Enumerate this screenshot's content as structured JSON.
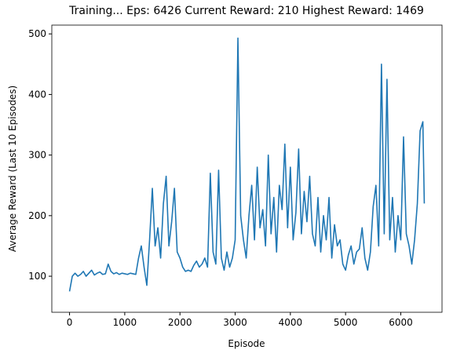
{
  "chart_data": {
    "type": "line",
    "title": "Training... Eps: 6426 Current Reward: 210 Highest Reward: 1469",
    "xlabel": "Episode",
    "ylabel": "Average Reward (Last 10 Episodes)",
    "x": [
      0,
      50,
      100,
      150,
      200,
      250,
      300,
      350,
      400,
      450,
      500,
      550,
      600,
      650,
      700,
      750,
      800,
      850,
      900,
      950,
      1000,
      1050,
      1100,
      1150,
      1200,
      1250,
      1300,
      1350,
      1400,
      1450,
      1500,
      1550,
      1600,
      1650,
      1700,
      1750,
      1800,
      1850,
      1900,
      1950,
      2000,
      2050,
      2100,
      2150,
      2200,
      2250,
      2300,
      2350,
      2400,
      2450,
      2500,
      2550,
      2600,
      2650,
      2700,
      2750,
      2800,
      2850,
      2900,
      2950,
      3000,
      3050,
      3100,
      3150,
      3200,
      3250,
      3300,
      3350,
      3400,
      3450,
      3500,
      3550,
      3600,
      3650,
      3700,
      3750,
      3800,
      3850,
      3900,
      3950,
      4000,
      4050,
      4100,
      4150,
      4200,
      4250,
      4300,
      4350,
      4400,
      4450,
      4500,
      4550,
      4600,
      4650,
      4700,
      4750,
      4800,
      4850,
      4900,
      4950,
      5000,
      5050,
      5100,
      5150,
      5200,
      5250,
      5300,
      5350,
      5400,
      5450,
      5500,
      5550,
      5600,
      5650,
      5700,
      5750,
      5800,
      5850,
      5900,
      5950,
      6000,
      6050,
      6100,
      6150,
      6200,
      6250,
      6300,
      6350,
      6400,
      6426
    ],
    "series": [
      {
        "name": "Average Reward",
        "color": "#1f77b4",
        "values": [
          75,
          100,
          105,
          100,
          103,
          108,
          100,
          105,
          110,
          102,
          105,
          107,
          103,
          104,
          120,
          108,
          104,
          106,
          103,
          105,
          104,
          103,
          105,
          104,
          103,
          130,
          150,
          115,
          85,
          160,
          245,
          150,
          180,
          130,
          220,
          265,
          150,
          190,
          245,
          140,
          130,
          115,
          108,
          110,
          108,
          118,
          125,
          115,
          120,
          130,
          115,
          270,
          140,
          120,
          275,
          130,
          110,
          140,
          115,
          130,
          160,
          493,
          200,
          160,
          130,
          200,
          250,
          160,
          280,
          180,
          210,
          150,
          300,
          170,
          230,
          140,
          250,
          210,
          318,
          180,
          280,
          160,
          205,
          310,
          170,
          240,
          190,
          265,
          170,
          150,
          230,
          140,
          200,
          160,
          230,
          130,
          185,
          150,
          160,
          120,
          110,
          135,
          150,
          120,
          140,
          145,
          180,
          130,
          110,
          140,
          215,
          250,
          150,
          450,
          170,
          425,
          160,
          230,
          140,
          200,
          160,
          330,
          170,
          150,
          120,
          160,
          220,
          340,
          355,
          220
        ]
      }
    ],
    "xlim": [
      -321,
      6747
    ],
    "ylim": [
      40.5,
      514.5
    ],
    "xticks": [
      0,
      1000,
      2000,
      3000,
      4000,
      5000,
      6000
    ],
    "yticks": [
      100,
      200,
      300,
      400,
      500
    ]
  }
}
